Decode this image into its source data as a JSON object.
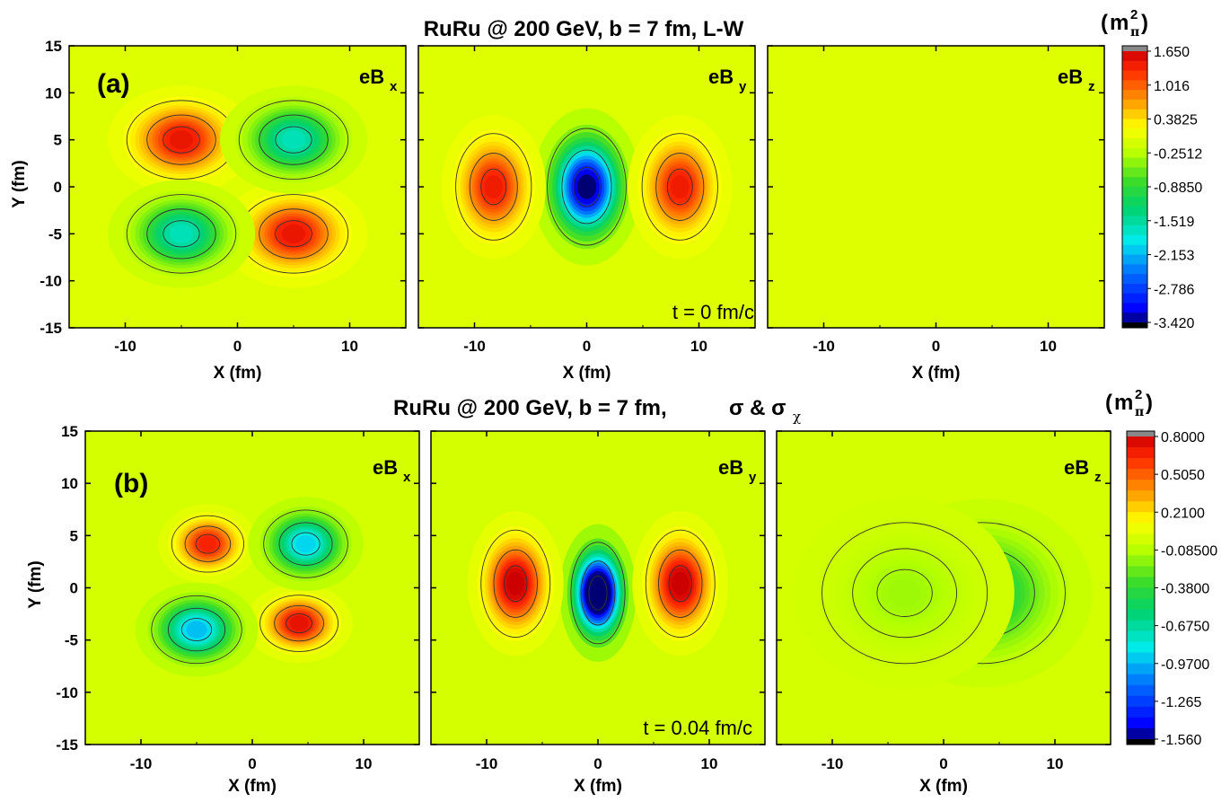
{
  "chart_data": [
    {
      "type": "heatmap",
      "label": "(a)",
      "title": "RuRu @ 200 GeV, b = 7 fm, L-W",
      "time_label": "t = 0 fm/c",
      "xlabel": "X (fm)",
      "ylabel": "Y (fm)",
      "xlim": [
        -15,
        15
      ],
      "ylim": [
        -15,
        15
      ],
      "xticks": [
        "-10",
        "0",
        "10"
      ],
      "yticks": [
        "15",
        "10",
        "5",
        "0",
        "-5",
        "-10",
        "-15"
      ],
      "panels": [
        {
          "name": "eB",
          "sub": "x",
          "blobs": [
            {
              "x": -5,
              "y": 5,
              "value": 1.45,
              "sx": 3.6,
              "sy": 3.1
            },
            {
              "x": 5,
              "y": -5,
              "value": 1.45,
              "sx": 3.6,
              "sy": 3.1
            },
            {
              "x": 5,
              "y": 5,
              "value": -1.65,
              "sx": 3.6,
              "sy": 3.1
            },
            {
              "x": -5,
              "y": -5,
              "value": -1.65,
              "sx": 3.6,
              "sy": 3.1
            }
          ]
        },
        {
          "name": "eB",
          "sub": "y",
          "blobs": [
            {
              "x": 0,
              "y": 0,
              "value": -3.45,
              "sx": 2.6,
              "sy": 4.6
            },
            {
              "x": -8.3,
              "y": 0,
              "value": 1.4,
              "sx": 2.5,
              "sy": 4.2
            },
            {
              "x": 8.3,
              "y": 0,
              "value": 1.4,
              "sx": 2.5,
              "sy": 4.2
            }
          ]
        },
        {
          "name": "eB",
          "sub": "z",
          "blobs": []
        }
      ],
      "colorbar": {
        "unit": "m",
        "unit_sub": "π",
        "unit_sup": "2",
        "min": -3.42,
        "max": 1.65,
        "labels": [
          "1.650",
          "1.016",
          "0.3825",
          "-0.2512",
          "-0.8850",
          "-1.519",
          "-2.153",
          "-2.786",
          "-3.420"
        ]
      }
    },
    {
      "type": "heatmap",
      "label": "(b)",
      "title": "RuRu @ 200 GeV, b = 7 fm,",
      "title_symbols": "σ & σ",
      "title_symbols_sub": "χ",
      "time_label": "t = 0.04 fm/c",
      "xlabel": "X (fm)",
      "ylabel": "Y (fm)",
      "xlim": [
        -15,
        15
      ],
      "ylim": [
        -15,
        15
      ],
      "xticks": [
        "-10",
        "0",
        "10"
      ],
      "yticks": [
        "15",
        "10",
        "5",
        "0",
        "-5",
        "-10",
        "-15"
      ],
      "panels": [
        {
          "name": "eB",
          "sub": "x",
          "blobs": [
            {
              "x": -4,
              "y": 4.2,
              "value": 0.66,
              "sx": 2.4,
              "sy": 2.0
            },
            {
              "x": 4.2,
              "y": -3.4,
              "value": 0.72,
              "sx": 2.6,
              "sy": 2.0
            },
            {
              "x": 4.8,
              "y": 4.2,
              "value": -0.9,
              "sx": 2.8,
              "sy": 2.4
            },
            {
              "x": -5,
              "y": -4,
              "value": -0.95,
              "sx": 3.0,
              "sy": 2.4
            }
          ]
        },
        {
          "name": "eB",
          "sub": "y",
          "blobs": [
            {
              "x": 0,
              "y": -0.5,
              "value": -1.95,
              "sx": 1.8,
              "sy": 3.6
            },
            {
              "x": -7.4,
              "y": 0.4,
              "value": 0.82,
              "sx": 2.3,
              "sy": 3.8
            },
            {
              "x": 7.4,
              "y": 0.4,
              "value": 0.82,
              "sx": 2.3,
              "sy": 3.8
            }
          ]
        },
        {
          "name": "eB",
          "sub": "z",
          "blobs": [
            {
              "x": 3.5,
              "y": -0.5,
              "value": -0.52,
              "sx": 5.5,
              "sy": 5.0
            },
            {
              "x": -3.5,
              "y": -0.5,
              "value": -0.14,
              "sx": 5.5,
              "sy": 5.0
            }
          ]
        }
      ],
      "colorbar": {
        "unit": "m",
        "unit_sub": "π",
        "unit_sup": "2",
        "min": -1.56,
        "max": 0.8,
        "labels": [
          "0.8000",
          "0.5050",
          "0.2100",
          "-0.08500",
          "-0.3800",
          "-0.6750",
          "-0.9700",
          "-1.265",
          "-1.560"
        ]
      }
    }
  ]
}
